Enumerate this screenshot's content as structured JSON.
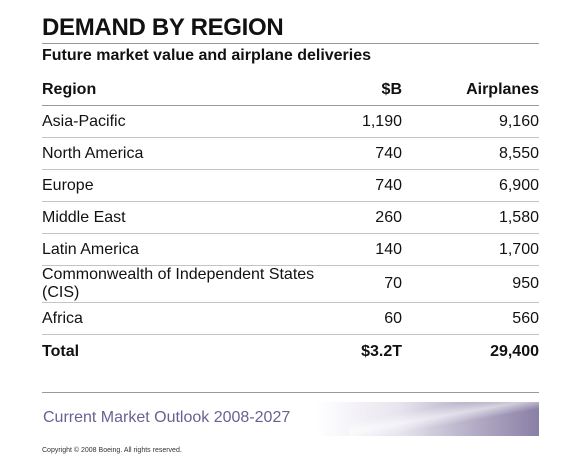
{
  "title": "DEMAND BY REGION",
  "subtitle": "Future market value and airplane deliveries",
  "chart_data": {
    "type": "table",
    "title": "DEMAND BY REGION",
    "subtitle": "Future market value and airplane deliveries",
    "columns": [
      "Region",
      "$B",
      "Airplanes"
    ],
    "rows": [
      [
        "Asia-Pacific",
        "1,190",
        "9,160"
      ],
      [
        "North America",
        "740",
        "8,550"
      ],
      [
        "Europe",
        "740",
        "6,900"
      ],
      [
        "Middle East",
        "260",
        "1,580"
      ],
      [
        "Latin America",
        "140",
        "1,700"
      ],
      [
        "Commonwealth of Independent States (CIS)",
        "70",
        "950"
      ],
      [
        "Africa",
        "60",
        "560"
      ]
    ],
    "total": [
      "Total",
      "$3.2T",
      "29,400"
    ]
  },
  "footer": {
    "outlook": "Current Market Outlook 2008-2027",
    "copyright": "Copyright © 2008 Boeing. All rights reserved."
  },
  "colors": {
    "accent": "#6d5f93",
    "rule": "#9a9a9a"
  }
}
